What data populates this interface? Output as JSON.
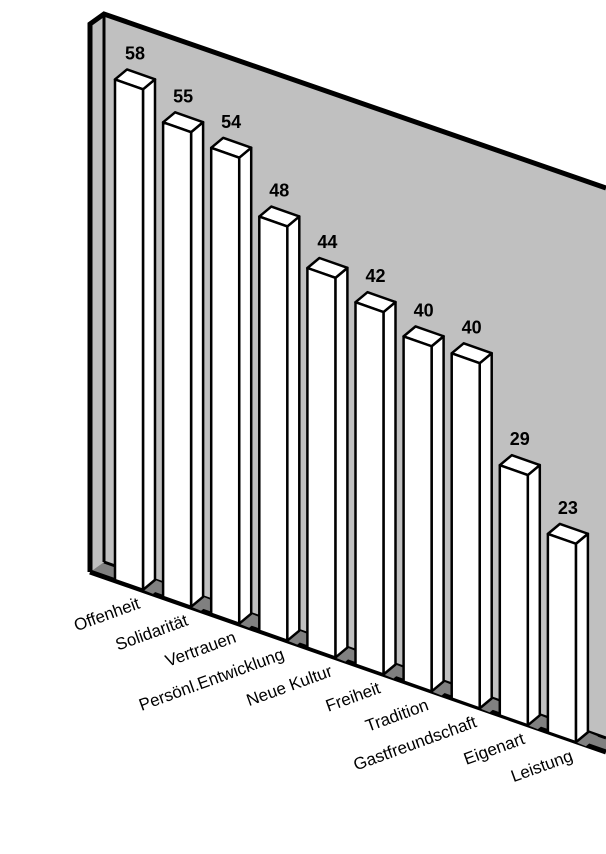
{
  "chart_data": {
    "type": "bar",
    "categories": [
      "Offenheit",
      "Solidarität",
      "Vertrauen",
      "Persönl.Entwicklung",
      "Neue Kultur",
      "Freiheit",
      "Tradition",
      "Gastfreundschaft",
      "Eigenart",
      "Leistung"
    ],
    "values": [
      58,
      55,
      54,
      48,
      44,
      42,
      40,
      40,
      29,
      23
    ],
    "title": "",
    "xlabel": "",
    "ylabel": "",
    "grid": false,
    "legend": "none",
    "style": "3d-perspective",
    "colors": {
      "wall": "#c0c0c0",
      "floor": "#808080",
      "frame": "#000000",
      "bar_front": "#ffffff",
      "bar_side": "#ffffff",
      "bar_top": "#ffffff",
      "shadow": "#808080"
    }
  }
}
